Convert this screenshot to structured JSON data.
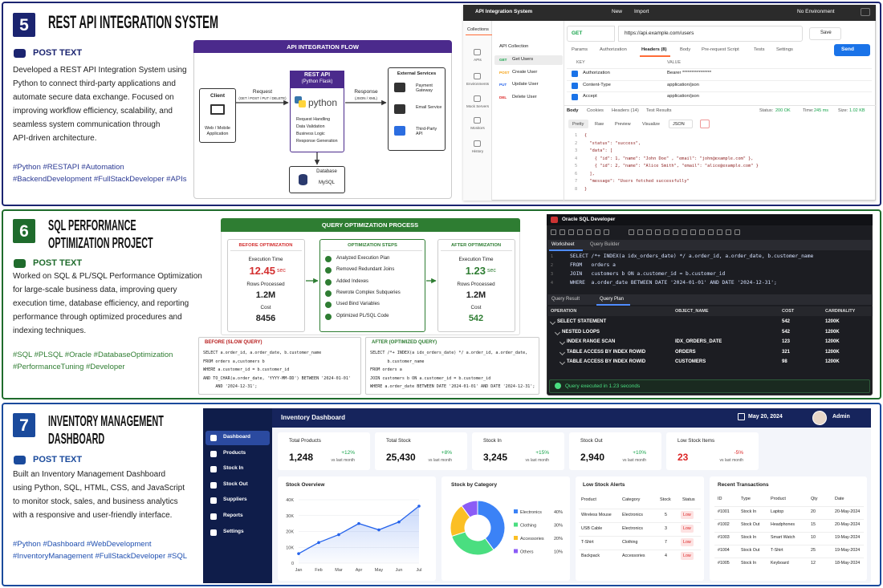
{
  "sections": [
    {
      "number": "5",
      "title": [
        "REST API INTEGRATION SYSTEM"
      ],
      "post_label": "POST TEXT",
      "description": [
        "Developed a REST API Integration System using",
        "Python to connect third-party applications and",
        "automate secure data exchange. Focused on",
        "improving workflow efficiency, scalability, and",
        "seamless system communication through",
        "API-driven architecture."
      ],
      "hashtags": [
        "#Python #RESTAPI #Automation",
        "#BackendDevelopment #FullStackDeveloper #APIs"
      ]
    },
    {
      "number": "6",
      "title": [
        "SQL PERFORMANCE",
        "OPTIMIZATION PROJECT"
      ],
      "post_label": "POST TEXT",
      "description": [
        "Worked on SQL & PL/SQL Performance Optimization",
        "for large-scale business data, improving query",
        "execution time, database efficiency, and reporting",
        "performance through optimized procedures and",
        "indexing techniques."
      ],
      "hashtags": [
        "#SQL #PLSQL #Oracle #DatabaseOptimization",
        "#PerformanceTuning #Developer"
      ]
    },
    {
      "number": "7",
      "title": [
        "INVENTORY MANAGEMENT",
        "DASHBOARD"
      ],
      "post_label": "POST TEXT",
      "description": [
        "Built an Inventory Management Dashboard",
        "using Python, SQL, HTML, CSS, and JavaScript",
        "to monitor stock, sales, and business analytics",
        "with a responsive and user-friendly interface."
      ],
      "hashtags": [
        "#Python #Dashboard #WebDevelopment",
        "#InventoryManagement #FullStackDeveloper #SQL"
      ]
    }
  ],
  "api_flow": {
    "title": "API INTEGRATION FLOW",
    "client": {
      "title": "Client",
      "subtitle": "Web / Mobile Application"
    },
    "request": {
      "label": "Request",
      "methods": "(GET / POST / PUT / DELETE)"
    },
    "server": {
      "title": "REST API",
      "subtitle": "(Python Flask)",
      "logo": "python",
      "items": [
        "Request Handling",
        "Data Validation",
        "Business Logic",
        "Response Generation"
      ]
    },
    "response": {
      "label": "Response",
      "formats": "(JSON / XML)"
    },
    "external": {
      "title": "External Services",
      "items": [
        "Payment Gateway",
        "Email Service",
        "Third-Party API"
      ]
    },
    "database": {
      "title": "Database",
      "subtitle": "MySQL"
    }
  },
  "postman": {
    "window_title": "API Integration System",
    "buttons": [
      "New",
      "Import"
    ],
    "environment": "No Environment",
    "sidebar": [
      "Collections",
      "APIs",
      "Environments",
      "Mock Servers",
      "Monitors",
      "History"
    ],
    "collection": "API Collection",
    "requests": [
      {
        "method": "GET",
        "name": "Get Users"
      },
      {
        "method": "POST",
        "name": "Create User"
      },
      {
        "method": "PUT",
        "name": "Update User"
      },
      {
        "method": "DEL",
        "name": "Delete User"
      }
    ],
    "method": "GET",
    "url": "https://api.example.com/users",
    "save": "Save",
    "send": "Send",
    "tabs": [
      "Params",
      "Authorization",
      "Headers (8)",
      "Body",
      "Pre-request Script",
      "Tests",
      "Settings"
    ],
    "table_headers": [
      "KEY",
      "VALUE"
    ],
    "headers": [
      [
        "Authorization",
        "Bearer ****************"
      ],
      [
        "Content-Type",
        "application/json"
      ],
      [
        "Accept",
        "application/json"
      ]
    ],
    "response_tabs": [
      "Body",
      "Cookies",
      "Headers (14)",
      "Test Results"
    ],
    "stats": [
      {
        "label": "Status:",
        "value": "200 OK"
      },
      {
        "label": "Time:",
        "value": "245 ms"
      },
      {
        "label": "Size:",
        "value": "1.02 KB"
      }
    ],
    "view_tabs": [
      "Pretty",
      "Raw",
      "Preview",
      "Visualize"
    ],
    "format": "JSON",
    "code": [
      [
        "1",
        "{"
      ],
      [
        "2",
        "  \"status\": \"success\","
      ],
      [
        "3",
        "  \"data\": ["
      ],
      [
        "4",
        "    { \"id\": 1, \"name\": \"John Doe\" , \"email\": \"john@example.com\" },"
      ],
      [
        "5",
        "    { \"id\": 2, \"name\": \"Alice Smith\", \"email\": \"alice@example.com\" }"
      ],
      [
        "6",
        "  ],"
      ],
      [
        "7",
        "  \"message\": \"Users fetched successfully\""
      ],
      [
        "8",
        "}"
      ]
    ]
  },
  "query_process": {
    "title": "QUERY OPTIMIZATION PROCESS",
    "before": {
      "title": "BEFORE OPTIMIZATION",
      "time_label": "Execution Time",
      "time": "12.45",
      "unit": "sec",
      "rows_label": "Rows Processed",
      "rows": "1.2M",
      "cost_label": "Cost",
      "cost": "8456"
    },
    "steps": {
      "title": "OPTIMIZATION STEPS",
      "items": [
        "Analyzed Execution Plan",
        "Removed Redundant Joins",
        "Added Indexes",
        "Rewrote Complex Subqueries",
        "Used Bind Variables",
        "Optimized PL/SQL Code"
      ]
    },
    "after": {
      "title": "AFTER OPTIMIZATION",
      "time_label": "Execution Time",
      "time": "1.23",
      "unit": "sec",
      "rows_label": "Rows Processed",
      "rows": "1.2M",
      "cost_label": "Cost",
      "cost": "542"
    }
  },
  "before_query": {
    "title": "BEFORE (SLOW QUERY)",
    "lines": [
      "SELECT a.order_id, a.order_date, b.customer_name",
      "FROM orders a,customers b",
      "WHERE a.customer_id = b.customer_id",
      "AND TO_CHAR(a.order_date, 'YYYY-MM-DD') BETWEEN '2024-01-01'",
      "     AND '2024-12-31';"
    ]
  },
  "after_query": {
    "title": "AFTER (OPTIMIZED QUERY)",
    "lines": [
      "SELECT /*+ INDEX(a idx_orders_date) */ a.order_id, a.order_date,",
      "       b.customer_name",
      "FROM orders a",
      "JOIN customers b ON a.customer_id = b.customer_id",
      "WHERE a.order_date BETWEEN DATE '2024-01-01' AND DATE '2024-12-31';"
    ]
  },
  "oracle": {
    "window_title": "Oracle SQL Developer",
    "tabs": [
      "Worksheet",
      "Query Builder"
    ],
    "code": [
      [
        "1",
        "SELECT /*+ INDEX(a idx_orders_date) */ a.order_id, a.order_date, b.customer_name"
      ],
      [
        "2",
        "FROM   orders a"
      ],
      [
        "3",
        "JOIN   customers b ON a.customer_id = b.customer_id"
      ],
      [
        "4",
        "WHERE  a.order_date BETWEEN DATE '2024-01-01' AND DATE '2024-12-31';"
      ]
    ],
    "result_tabs": [
      "Query Result",
      "Query Plan"
    ],
    "columns": [
      "OPERATION",
      "OBJECT_NAME",
      "COST",
      "CARDINALITY"
    ],
    "rows": [
      {
        "operation": "SELECT STATEMENT",
        "cost": "542",
        "cardinality": "1200K"
      },
      {
        "operation": "NESTED LOOPS",
        "cost": "542",
        "cardinality": "1200K"
      },
      {
        "operation": "INDEX RANGE SCAN",
        "object": "IDX_ORDERS_DATE",
        "cost": "123",
        "cardinality": "1200K"
      },
      {
        "operation": "TABLE ACCESS BY INDEX ROWID",
        "object": "ORDERS",
        "cost": "321",
        "cardinality": "1200K"
      },
      {
        "operation": "TABLE ACCESS BY INDEX ROWID",
        "object": "CUSTOMERS",
        "cost": "98",
        "cardinality": "1200K"
      }
    ],
    "status": "Query executed in 1.23 seconds"
  },
  "dashboard": {
    "title": "Inventory Dashboard",
    "date": "May 20, 2024",
    "user": "Admin",
    "nav": [
      "Dashboard",
      "Products",
      "Stock In",
      "Stock Out",
      "Suppliers",
      "Reports",
      "Settings"
    ],
    "kpis": [
      {
        "label": "Total Products",
        "value": "1,248",
        "change": "+12%",
        "note": "vs last month"
      },
      {
        "label": "Total Stock",
        "value": "25,430",
        "change": "+8%",
        "note": "vs last month"
      },
      {
        "label": "Stock In",
        "value": "3,245",
        "change": "+15%",
        "note": "vs last month"
      },
      {
        "label": "Stock Out",
        "value": "2,940",
        "change": "+10%",
        "note": "vs last month"
      },
      {
        "label": "Low Stock Items",
        "value": "23",
        "change": "-5%",
        "note": "vs last month"
      }
    ],
    "low_stock": {
      "title": "Low Stock Alerts",
      "columns": [
        "Product",
        "Category",
        "Stock",
        "Status"
      ],
      "rows": [
        [
          "Wireless Mouse",
          "Electronics",
          "5",
          "Low"
        ],
        [
          "USB Cable",
          "Electronics",
          "3",
          "Low"
        ],
        [
          "T-Shirt",
          "Clothing",
          "7",
          "Low"
        ],
        [
          "Backpack",
          "Accessories",
          "4",
          "Low"
        ]
      ]
    },
    "transactions": {
      "title": "Recent Transactions",
      "columns": [
        "ID",
        "Type",
        "Product",
        "Qty",
        "Date"
      ],
      "rows": [
        [
          "#1001",
          "Stock In",
          "Laptop",
          "20",
          "20-May-2024"
        ],
        [
          "#1002",
          "Stock Out",
          "Headphones",
          "15",
          "20-May-2024"
        ],
        [
          "#1003",
          "Stock In",
          "Smart Watch",
          "10",
          "19-May-2024"
        ],
        [
          "#1004",
          "Stock Out",
          "T-Shirt",
          "25",
          "19-May-2024"
        ],
        [
          "#1005",
          "Stock In",
          "Keyboard",
          "12",
          "18-May-2024"
        ]
      ]
    }
  },
  "chart_data": [
    {
      "type": "line",
      "title": "Stock Overview",
      "categories": [
        "Jan",
        "Feb",
        "Mar",
        "Apr",
        "May",
        "Jun",
        "Jul"
      ],
      "values": [
        6000,
        13000,
        18000,
        25000,
        21000,
        26000,
        36000
      ],
      "color": "#2563eb",
      "ylim": [
        0,
        40000
      ],
      "yticks": [
        0,
        {
          "value": 10000,
          "label": "10K"
        },
        {
          "value": 20000,
          "label": "20K"
        },
        {
          "value": 30000,
          "label": "30K"
        },
        {
          "value": 40000,
          "label": "40K"
        }
      ],
      "grid": true
    },
    {
      "type": "pie",
      "title": "Stock by Category",
      "categories": [
        "Electronics",
        "Clothing",
        "Accessories",
        "Others"
      ],
      "values": [
        40,
        30,
        20,
        10
      ],
      "value_labels": [
        "40%",
        "30%",
        "20%",
        "10%"
      ],
      "colors": [
        "#3b82f6",
        "#4ade80",
        "#fbbf24",
        "#8b5cf6"
      ]
    }
  ]
}
